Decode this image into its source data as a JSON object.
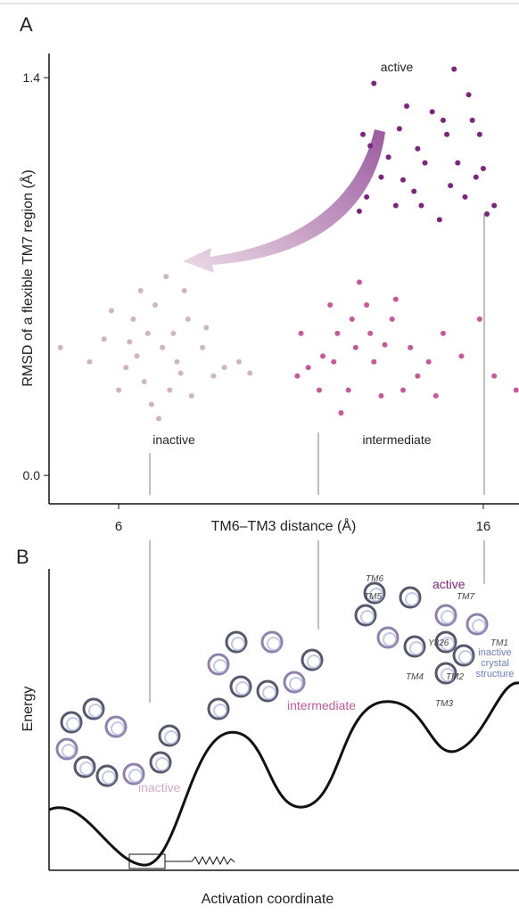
{
  "chart_data": {
    "type": "scatter",
    "panel_label": "A",
    "x_label": "TM6–TM3 distance (Å)",
    "y_label": "RMSD of a flexible TM7 region (Å)",
    "xlim": [
      4.09,
      16.98
    ],
    "ylim": [
      -0.1,
      1.485
    ],
    "xticks": [
      6,
      16
    ],
    "yticks": [
      {
        "value": 0,
        "label": "0.0"
      },
      1.4
    ],
    "series": [
      {
        "name": "inactive",
        "color": "#cfb3c7",
        "x": [
          7.2,
          6.8,
          7.6,
          6.5,
          7.9,
          6.2,
          7.0,
          8.3,
          5.6,
          7.4,
          6.9,
          8.6,
          5.2,
          7.8,
          6.4,
          8.0,
          6.0,
          7.3,
          4.4,
          8.9,
          7.1,
          6.6,
          5.8,
          8.4,
          7.5,
          6.3,
          9.3,
          9.6,
          7.7,
          6.7
        ],
        "y": [
          0.45,
          0.5,
          0.4,
          0.42,
          0.55,
          0.38,
          0.6,
          0.45,
          0.48,
          0.3,
          0.25,
          0.35,
          0.4,
          0.65,
          0.55,
          0.28,
          0.3,
          0.7,
          0.45,
          0.38,
          0.2,
          0.65,
          0.58,
          0.52,
          0.5,
          0.47,
          0.4,
          0.36,
          0.36,
          0.33
        ]
      },
      {
        "name": "intermediate",
        "color": "#c9579a",
        "x": [
          12.5,
          12.0,
          13.0,
          11.6,
          13.5,
          11.2,
          12.8,
          14.0,
          11.0,
          12.3,
          13.2,
          14.5,
          10.9,
          12.6,
          11.8,
          13.8,
          12.1,
          14.9,
          15.4,
          13.6,
          12.9,
          11.5,
          14.2,
          15.9,
          16.3,
          16.9,
          12.4,
          13.3,
          11.9,
          14.7
        ],
        "y": [
          0.45,
          0.5,
          0.4,
          0.42,
          0.55,
          0.38,
          0.6,
          0.45,
          0.5,
          0.3,
          0.28,
          0.4,
          0.35,
          0.68,
          0.6,
          0.3,
          0.22,
          0.5,
          0.42,
          0.62,
          0.5,
          0.3,
          0.35,
          0.55,
          0.35,
          0.3,
          0.55,
          0.46,
          0.4,
          0.28
        ]
      },
      {
        "name": "active",
        "color": "#7e237e",
        "x": [
          13.0,
          15.2,
          15.6,
          13.7,
          14.2,
          15.0,
          14.6,
          15.3,
          13.2,
          12.6,
          14.1,
          15.8,
          16.1,
          13.6,
          14.8,
          12.9,
          15.5,
          13.9,
          14.4,
          15.9,
          16.3,
          12.8,
          13.4,
          14.9,
          15.1,
          13.8,
          16.0,
          12.7,
          14.3,
          15.7
        ],
        "y": [
          1.38,
          1.43,
          1.34,
          1.22,
          1.15,
          1.2,
          1.28,
          1.1,
          1.05,
          0.93,
          1.0,
          1.05,
          0.92,
          0.95,
          0.9,
          1.16,
          0.98,
          1.3,
          1.1,
          1.2,
          0.95,
          0.98,
          1.12,
          1.25,
          1.02,
          1.04,
          1.08,
          1.2,
          0.95,
          1.25
        ]
      }
    ]
  },
  "panel_b": {
    "label": "B",
    "y_label": "Energy",
    "x_label": "Activation coordinate",
    "states": {
      "active": "active",
      "intermediate": "intermediate",
      "inactive": "inactive"
    },
    "crystal_label": [
      "inactive",
      "crystal",
      "structure"
    ],
    "helix_labels": [
      "TM6",
      "TM5",
      "TM7",
      "TM1",
      "Y326",
      "TM4",
      "TM2",
      "TM3"
    ]
  }
}
